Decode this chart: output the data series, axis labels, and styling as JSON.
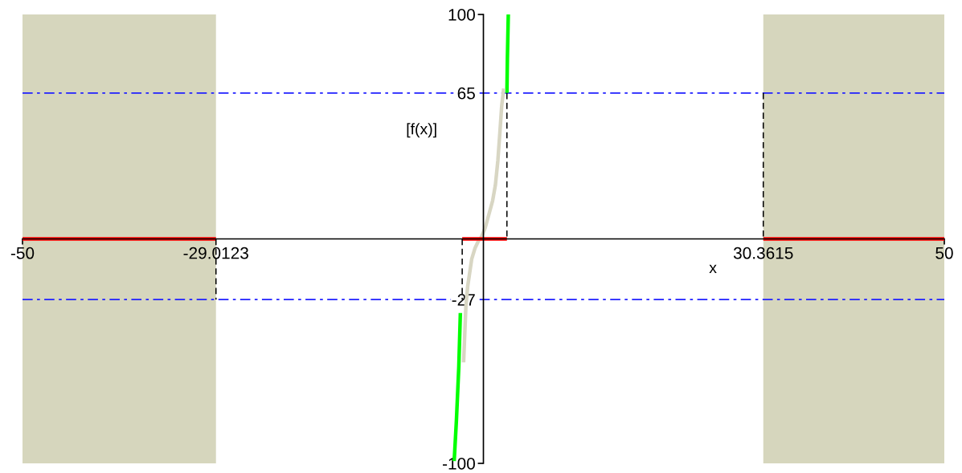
{
  "chart_data": {
    "type": "line",
    "xlabel": "x",
    "ylabel": "[f(x)]",
    "xlim": [
      -50,
      50
    ],
    "ylim": [
      -100,
      100
    ],
    "xticks": [
      -50,
      -29.0123,
      30.3615,
      50
    ],
    "yticks": [
      -100,
      -27,
      65,
      100
    ],
    "bands": [
      {
        "axis": "x",
        "from": -50,
        "to": -29.0123,
        "color": "#d6d6bd"
      },
      {
        "axis": "x",
        "from": 30.3615,
        "to": 50,
        "color": "#d6d6bd"
      }
    ],
    "ref_lines": [
      {
        "axis": "y",
        "value": 65,
        "color": "#2020ff",
        "line_style": "dashdot"
      },
      {
        "axis": "y",
        "value": -27,
        "color": "#2020ff",
        "line_style": "dashdot"
      }
    ],
    "series": [
      {
        "color": "#00ff00",
        "line_style": "solid",
        "x": [
          -3.17,
          -2.93,
          -2.67,
          -2.5
        ],
        "values": [
          -99,
          -81,
          -57,
          -33
        ]
      },
      {
        "color": "#00ff00",
        "line_style": "solid",
        "x": [
          2.55,
          2.6,
          2.7
        ],
        "values": [
          65,
          80,
          100
        ]
      },
      {
        "color": "#d8d6c3",
        "line_style": "solid",
        "x": [
          -2.15,
          -2.0,
          -1.9,
          -1.7,
          -1.27,
          -0.9,
          -0.55,
          -0.2,
          0.2,
          0.6,
          1.0,
          1.3,
          1.57,
          1.78,
          1.98,
          2.2
        ],
        "values": [
          -55,
          -40,
          -30,
          -21,
          -9,
          -4,
          -1,
          1,
          5,
          11,
          17,
          24,
          35,
          47,
          59,
          67
        ]
      },
      {
        "color": "#ff0000",
        "line_style": "solid",
        "x": [
          -50,
          -29.0123
        ],
        "values": [
          0,
          0
        ]
      },
      {
        "color": "#ff0000",
        "line_style": "solid",
        "x": [
          -2.3,
          2.55
        ],
        "values": [
          0,
          0
        ]
      },
      {
        "color": "#ff0000",
        "line_style": "solid",
        "x": [
          30.3615,
          50
        ],
        "values": [
          0,
          0
        ]
      },
      {
        "color": "#000000",
        "line_style": "dashed",
        "x": [
          -29.0123,
          -29.0123
        ],
        "values": [
          0,
          -27
        ]
      },
      {
        "color": "#000000",
        "line_style": "dashed",
        "x": [
          -2.3,
          -2.3
        ],
        "values": [
          0,
          -27
        ]
      },
      {
        "color": "#000000",
        "line_style": "dashed",
        "x": [
          2.55,
          2.55
        ],
        "values": [
          65,
          0
        ]
      },
      {
        "color": "#000000",
        "line_style": "dashed",
        "x": [
          30.3615,
          30.3615
        ],
        "values": [
          65,
          0
        ]
      }
    ]
  }
}
